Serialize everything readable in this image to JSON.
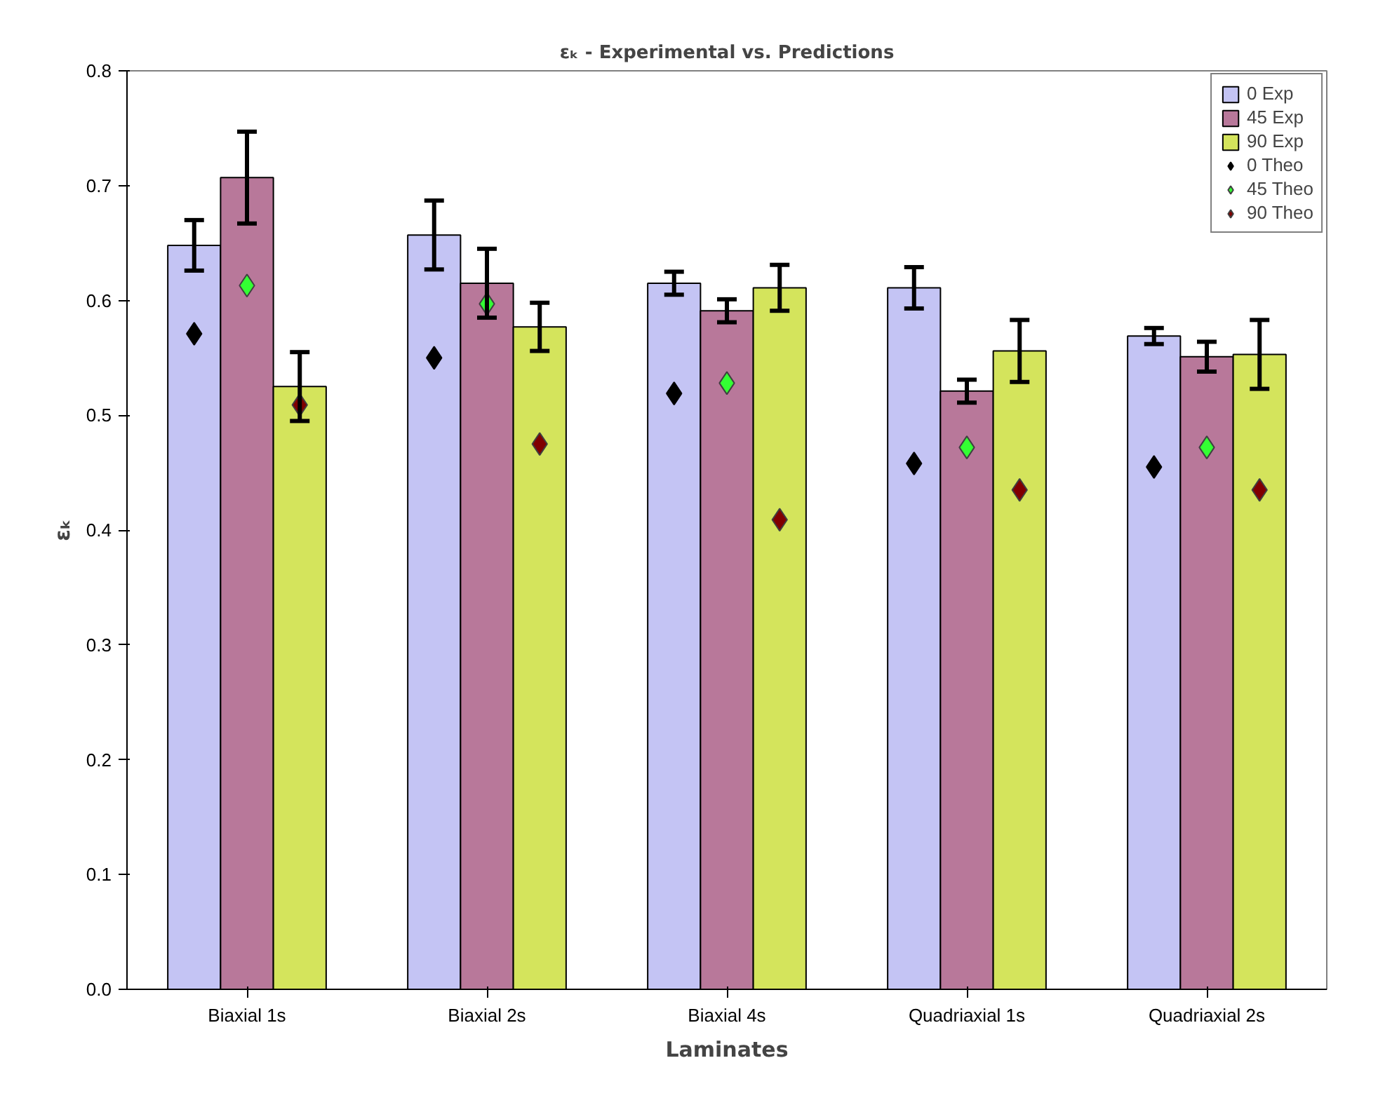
{
  "chart_data": {
    "type": "bar",
    "title": "εₖ - Experimental vs. Predictions",
    "xlabel": "Laminates",
    "ylabel": "εₖ",
    "categories": [
      "Biaxial 1s",
      "Biaxial 2s",
      "Biaxial 4s",
      "Quadriaxial 1s",
      "Quadriaxial 2s"
    ],
    "ylim": [
      0,
      0.8
    ],
    "yticks": [
      {
        "value": 0,
        "label": "0.0"
      },
      0.1,
      0.2,
      0.3,
      0.4,
      0.5,
      0.6,
      0.7,
      0.8
    ],
    "grid": false,
    "legend": "top right",
    "marker": "diamond",
    "series": [
      {
        "name": "0 Exp",
        "color": "#c4c4f4",
        "values": [
          0.648,
          0.657,
          0.615,
          0.611,
          0.569
        ],
        "errors": [
          0.022,
          0.03,
          0.01,
          0.018,
          0.007
        ]
      },
      {
        "name": "45 Exp",
        "color": "#b8789a",
        "values": [
          0.707,
          0.615,
          0.591,
          0.521,
          0.551
        ],
        "errors": [
          0.04,
          0.03,
          0.01,
          0.01,
          0.013
        ]
      },
      {
        "name": "90 Exp",
        "color": "#d4e45c",
        "values": [
          0.525,
          0.577,
          0.611,
          0.556,
          0.553
        ],
        "errors": [
          0.03,
          0.021,
          0.02,
          0.027,
          0.03
        ]
      },
      {
        "name": "0 Theo",
        "type": "scatter",
        "color": "#000000",
        "values": [
          0.571,
          0.55,
          0.519,
          0.458,
          0.455
        ]
      },
      {
        "name": "45 Theo",
        "type": "scatter",
        "color": "#33ff33",
        "values": [
          0.613,
          0.597,
          0.528,
          0.472,
          0.472
        ]
      },
      {
        "name": "90 Theo",
        "type": "scatter",
        "color": "#800000",
        "values": [
          0.509,
          0.475,
          0.409,
          0.435,
          0.435
        ]
      }
    ]
  }
}
